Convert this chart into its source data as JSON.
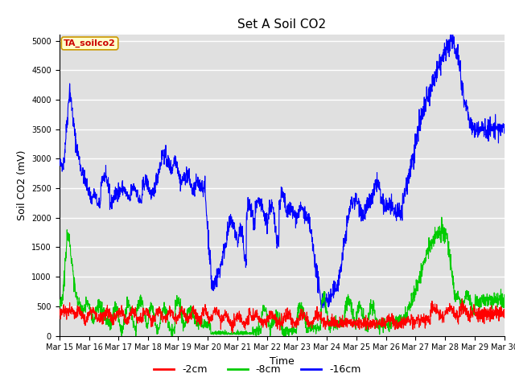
{
  "title": "Set A Soil CO2",
  "ylabel": "Soil CO2 (mV)",
  "xlabel": "Time",
  "ylim": [
    0,
    5100
  ],
  "yticks": [
    0,
    500,
    1000,
    1500,
    2000,
    2500,
    3000,
    3500,
    4000,
    4500,
    5000
  ],
  "legend_label": "TA_soilco2",
  "legend_box_color": "#ffffcc",
  "legend_text_color": "#cc0000",
  "legend_edge_color": "#cc9900",
  "line_colors": {
    "2cm": "#ff0000",
    "8cm": "#00cc00",
    "16cm": "#0000ff"
  },
  "bg_color": "#e0e0e0",
  "grid_color": "#ffffff",
  "fig_bg": "#ffffff",
  "title_fontsize": 11,
  "label_fontsize": 9,
  "tick_fontsize": 7,
  "legend_fontsize": 9
}
